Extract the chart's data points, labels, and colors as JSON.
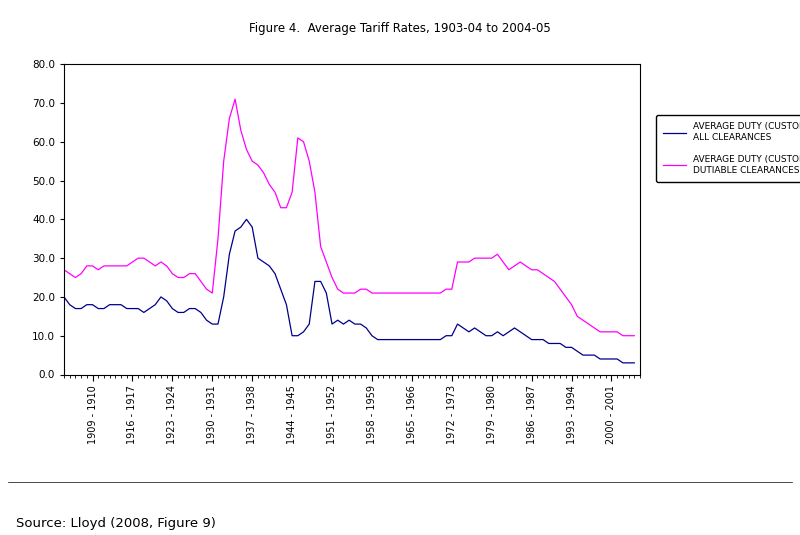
{
  "title": "Figure 4.  Average Tariff Rates, 1903-04 to 2004-05",
  "source_text": "Source: Lloyd (2008, Figure 9)",
  "legend1": "AVERAGE DUTY (CUSTOMS PLUS PRIMAGE, NET) -\nALL CLEARANCES",
  "legend2": "AVERAGE DUTY (CUSTOMS PLUS PRIMAGE, NET) -\nDUTIABLE CLEARANCES ONLY, ADJUSTED",
  "color1": "#00008B",
  "color2": "#FF00FF",
  "ylim": [
    0,
    80
  ],
  "yticks": [
    0.0,
    10.0,
    20.0,
    30.0,
    40.0,
    50.0,
    60.0,
    70.0,
    80.0
  ],
  "xtick_labels": [
    "1909 - 1910",
    "1916 - 1917",
    "1923 - 1924",
    "1930 - 1931",
    "1937 - 1938",
    "1944 - 1945",
    "1951 - 1952",
    "1958 - 1959",
    "1965 - 1966",
    "1972 - 1973",
    "1979 - 1980",
    "1986 - 1987",
    "1993 - 1994",
    "2000 - 2001"
  ],
  "xtick_positions": [
    1909,
    1916,
    1923,
    1930,
    1937,
    1944,
    1951,
    1958,
    1965,
    1972,
    1979,
    1986,
    1993,
    2000
  ],
  "years": [
    1904,
    1905,
    1906,
    1907,
    1908,
    1909,
    1910,
    1911,
    1912,
    1913,
    1914,
    1915,
    1916,
    1917,
    1918,
    1919,
    1920,
    1921,
    1922,
    1923,
    1924,
    1925,
    1926,
    1927,
    1928,
    1929,
    1930,
    1931,
    1932,
    1933,
    1934,
    1935,
    1936,
    1937,
    1938,
    1939,
    1940,
    1941,
    1942,
    1943,
    1944,
    1945,
    1946,
    1947,
    1948,
    1949,
    1950,
    1951,
    1952,
    1953,
    1954,
    1955,
    1956,
    1957,
    1958,
    1959,
    1960,
    1961,
    1962,
    1963,
    1964,
    1965,
    1966,
    1967,
    1968,
    1969,
    1970,
    1971,
    1972,
    1973,
    1974,
    1975,
    1976,
    1977,
    1978,
    1979,
    1980,
    1981,
    1982,
    1983,
    1984,
    1985,
    1986,
    1987,
    1988,
    1989,
    1990,
    1991,
    1992,
    1993,
    1994,
    1995,
    1996,
    1997,
    1998,
    1999,
    2000,
    2001,
    2002,
    2003,
    2004
  ],
  "series_all": [
    20,
    18,
    17,
    17,
    18,
    18,
    17,
    17,
    18,
    18,
    18,
    17,
    17,
    17,
    16,
    17,
    18,
    20,
    19,
    17,
    16,
    16,
    17,
    17,
    16,
    14,
    13,
    13,
    20,
    31,
    37,
    38,
    40,
    38,
    30,
    29,
    28,
    26,
    22,
    18,
    10,
    10,
    11,
    13,
    24,
    24,
    21,
    13,
    14,
    13,
    14,
    13,
    13,
    12,
    10,
    9,
    9,
    9,
    9,
    9,
    9,
    9,
    9,
    9,
    9,
    9,
    9,
    10,
    10,
    13,
    12,
    11,
    12,
    11,
    10,
    10,
    11,
    10,
    11,
    12,
    11,
    10,
    9,
    9,
    9,
    8,
    8,
    8,
    7,
    7,
    6,
    5,
    5,
    5,
    4,
    4,
    4,
    4,
    3,
    3,
    3
  ],
  "series_dutiable": [
    27,
    26,
    25,
    26,
    28,
    28,
    27,
    28,
    28,
    28,
    28,
    28,
    29,
    30,
    30,
    29,
    28,
    29,
    28,
    26,
    25,
    25,
    26,
    26,
    24,
    22,
    21,
    35,
    55,
    66,
    71,
    63,
    58,
    55,
    54,
    52,
    49,
    47,
    43,
    43,
    47,
    61,
    60,
    55,
    47,
    33,
    29,
    25,
    22,
    21,
    21,
    21,
    22,
    22,
    21,
    21,
    21,
    21,
    21,
    21,
    21,
    21,
    21,
    21,
    21,
    21,
    21,
    22,
    22,
    29,
    29,
    29,
    30,
    30,
    30,
    30,
    31,
    29,
    27,
    28,
    29,
    28,
    27,
    27,
    26,
    25,
    24,
    22,
    20,
    18,
    15,
    14,
    13,
    12,
    11,
    11,
    11,
    11,
    10,
    10,
    10
  ],
  "xlim": [
    1904,
    2005
  ],
  "background_color": "#ffffff"
}
